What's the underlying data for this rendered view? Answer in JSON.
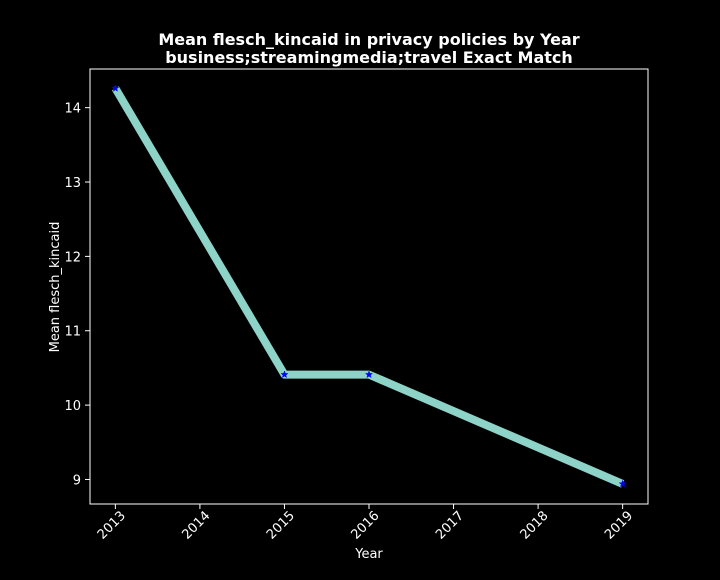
{
  "chart_data": {
    "type": "line",
    "title": "Mean flesch_kincaid in privacy policies by Year",
    "subtitle": "business;streamingmedia;travel Exact Match",
    "xlabel": "Year",
    "ylabel": "Mean flesch_kincaid",
    "x_ticks": [
      "2013",
      "2014",
      "2015",
      "2016",
      "2017",
      "2018",
      "2019"
    ],
    "y_ticks": [
      "9",
      "10",
      "11",
      "12",
      "13",
      "14"
    ],
    "xlim": [
      2012.7,
      2019.3
    ],
    "ylim": [
      8.67,
      14.52
    ],
    "grid": false,
    "series": [
      {
        "x": [
          2013,
          2015,
          2016,
          2019
        ],
        "y": [
          14.26,
          10.41,
          10.41,
          8.94
        ]
      }
    ],
    "colors": {
      "background": "#000000",
      "line": "#8dd3c7",
      "marker": "#0000ff",
      "text": "#ffffff",
      "axes": "#ffffff"
    }
  }
}
